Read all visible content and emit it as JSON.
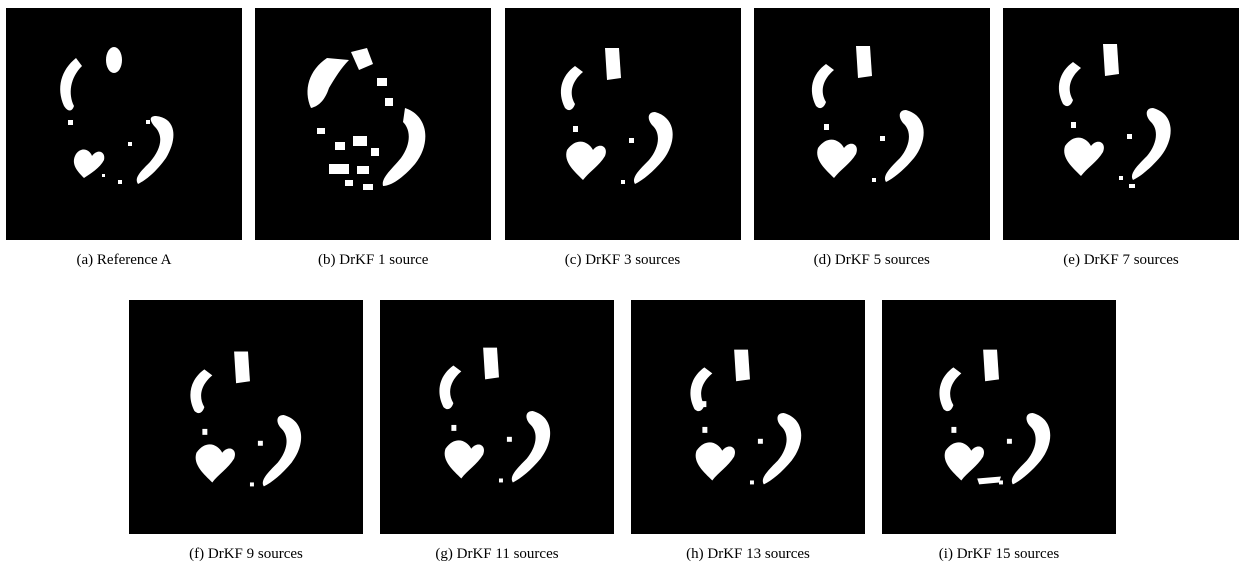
{
  "figure": {
    "panels": [
      {
        "label": "(a) Reference A"
      },
      {
        "label": "(b) DrKF 1 source"
      },
      {
        "label": "(c) DrKF 3 sources"
      },
      {
        "label": "(d) DrKF 5 sources"
      },
      {
        "label": "(e) DrKF 7 sources"
      },
      {
        "label": "(f) DrKF 9 sources"
      },
      {
        "label": "(g) DrKF 11 sources"
      },
      {
        "label": "(h) DrKF 13 sources"
      },
      {
        "label": "(i) DrKF 15 sources"
      }
    ],
    "colors": {
      "background": "#000000",
      "foreground": "#ffffff"
    }
  }
}
